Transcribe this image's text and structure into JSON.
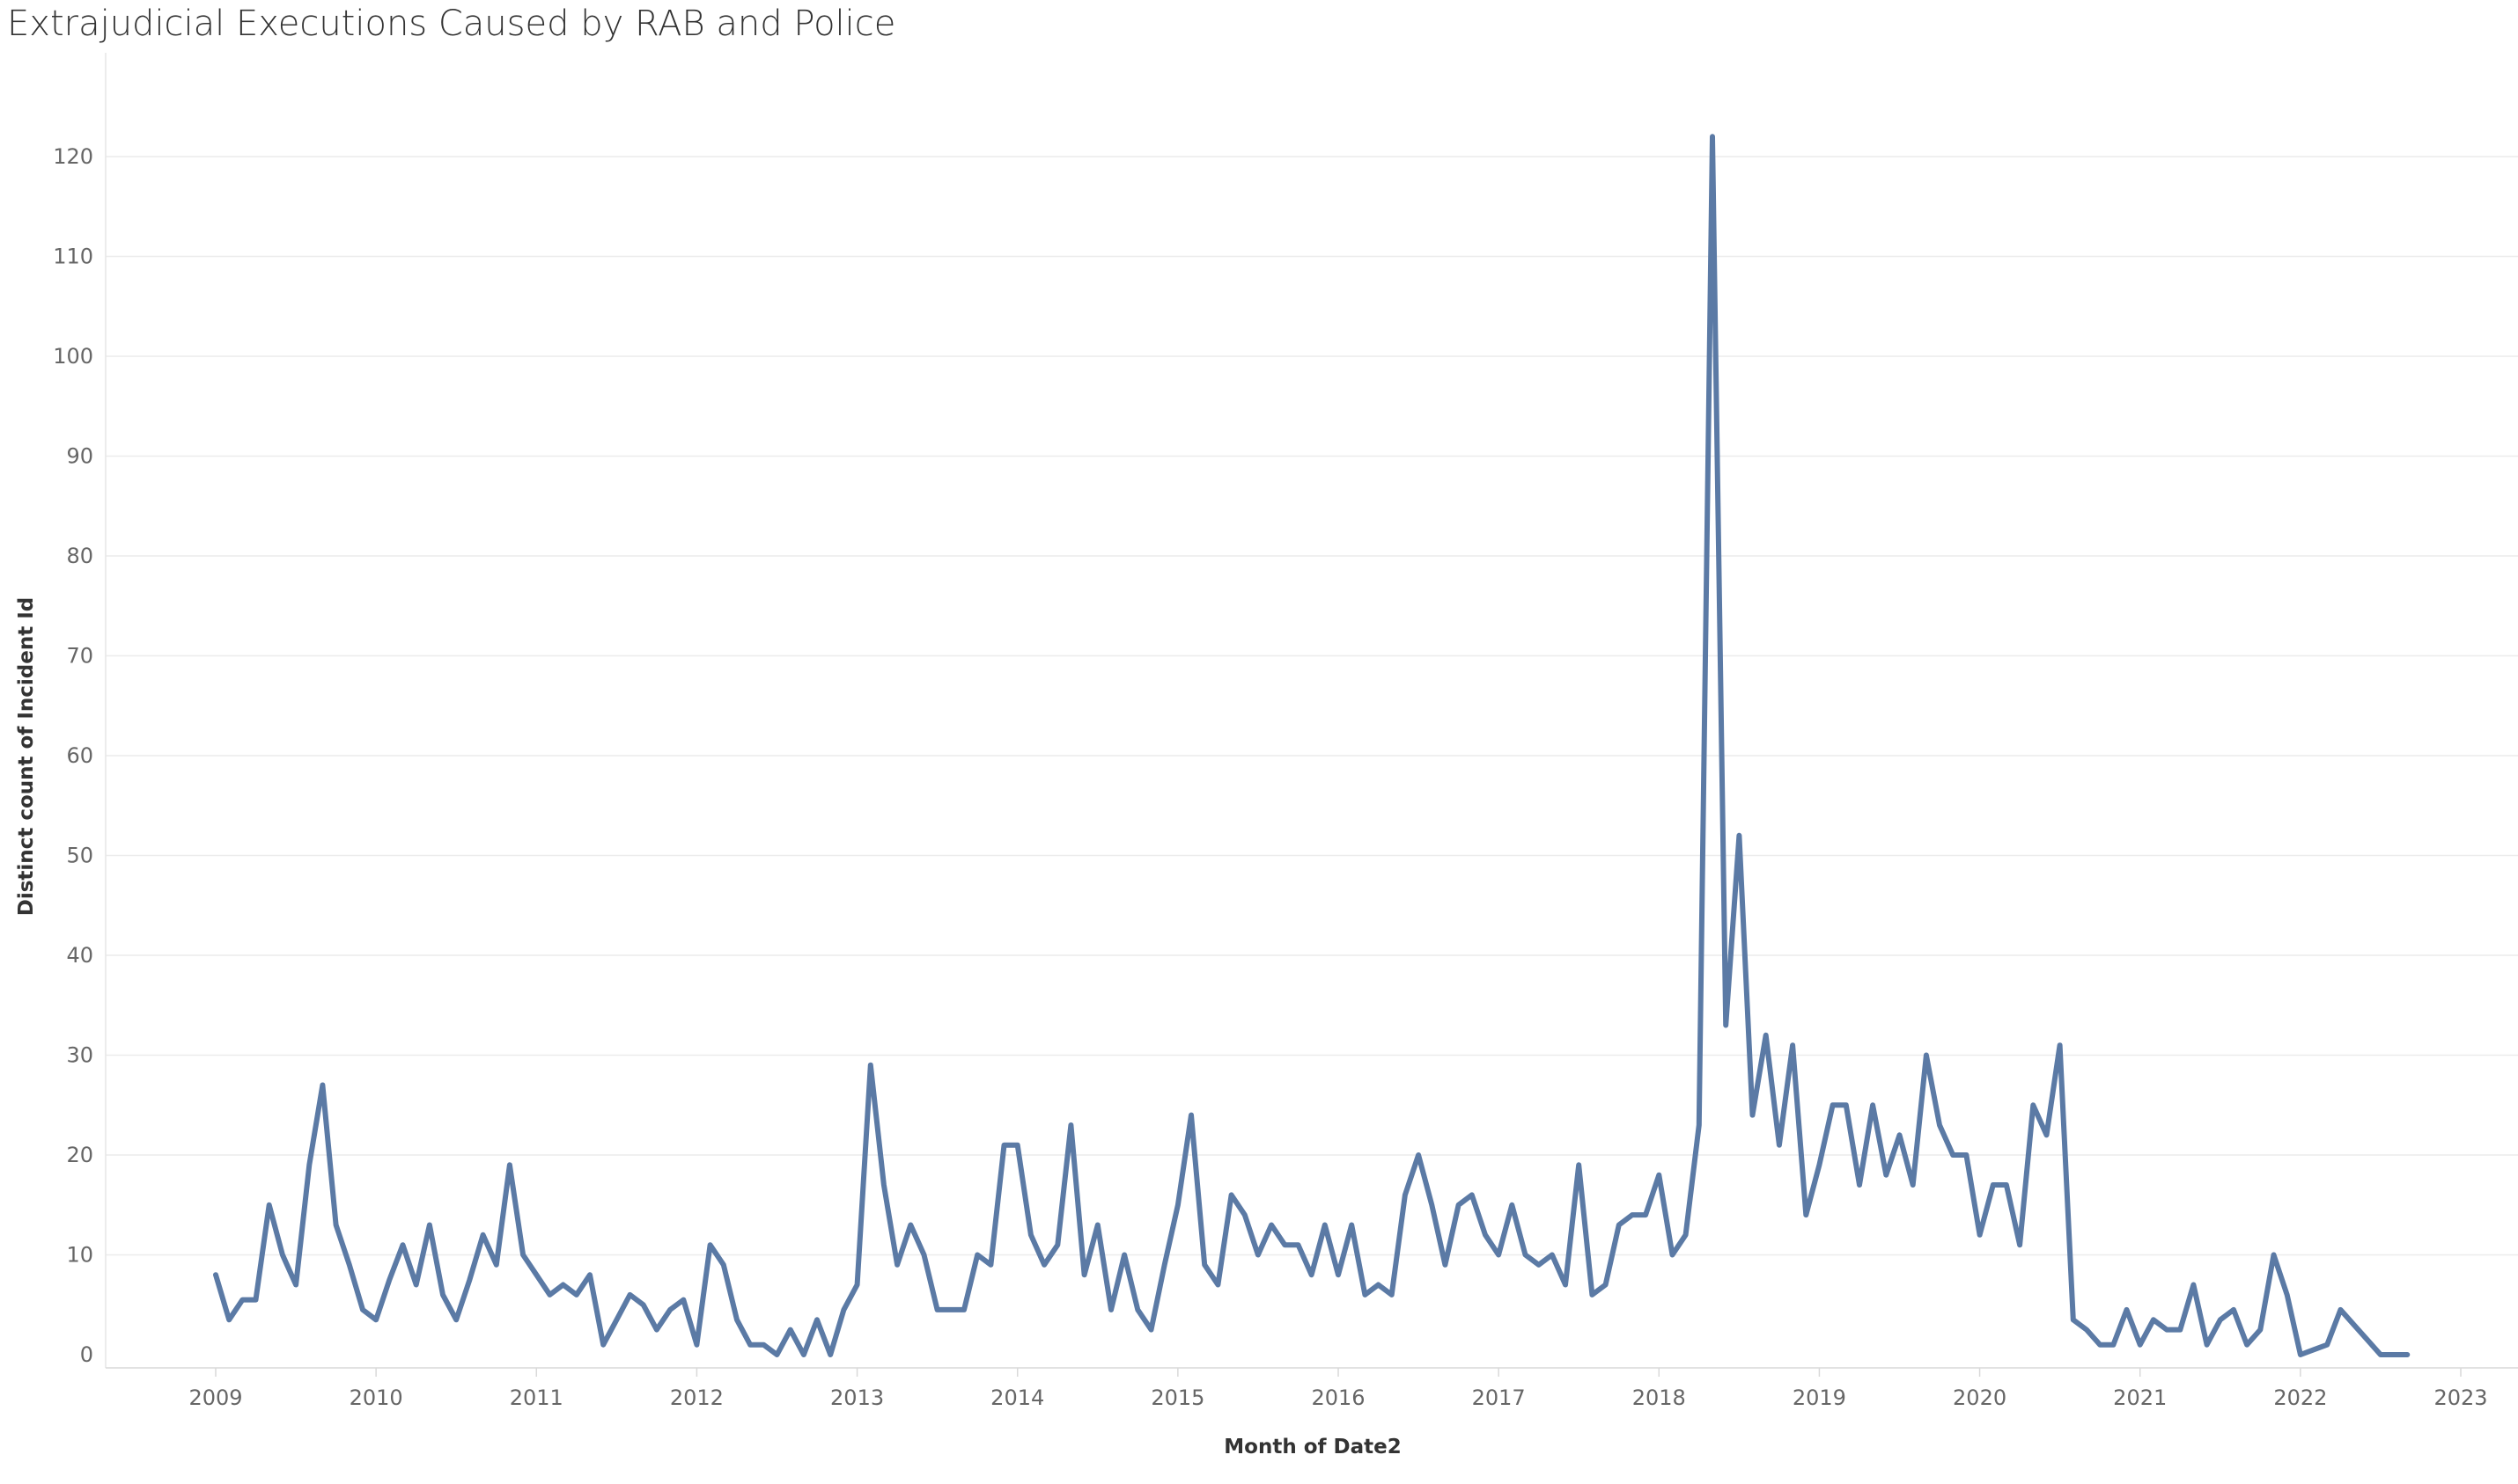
{
  "chart_data": {
    "type": "line",
    "title": "Extrajudicial Executions Caused by RAB and Police",
    "xlabel": "Month of Date2",
    "ylabel": "Distinct count of Incident Id",
    "ylim": [
      -2,
      125
    ],
    "y_ticks": [
      0,
      10,
      20,
      30,
      40,
      50,
      60,
      70,
      80,
      90,
      100,
      110,
      120
    ],
    "x_ticks": [
      "2009",
      "2010",
      "2011",
      "2012",
      "2013",
      "2014",
      "2015",
      "2016",
      "2017",
      "2018",
      "2019",
      "2020",
      "2021",
      "2022",
      "2023"
    ],
    "xlim": [
      "2008-07",
      "2023-03"
    ],
    "grid": true,
    "line_color": "#5b7aa5",
    "series": [
      {
        "x": [
          "2009-01",
          "2009-02",
          "2009-03",
          "2009-04",
          "2009-05",
          "2009-06",
          "2009-07",
          "2009-08",
          "2009-09",
          "2009-10",
          "2009-11",
          "2009-12",
          "2010-01",
          "2010-02",
          "2010-03",
          "2010-04",
          "2010-05",
          "2010-06",
          "2010-07",
          "2010-08",
          "2010-09",
          "2010-10",
          "2010-11",
          "2010-12",
          "2011-01",
          "2011-02",
          "2011-03",
          "2011-04",
          "2011-05",
          "2011-06",
          "2011-07",
          "2011-08",
          "2011-09",
          "2011-10",
          "2011-11",
          "2011-12",
          "2012-01",
          "2012-02",
          "2012-03",
          "2012-04",
          "2012-05",
          "2012-06",
          "2012-07",
          "2012-08",
          "2012-09",
          "2012-10",
          "2012-11",
          "2012-12",
          "2013-01",
          "2013-02",
          "2013-03",
          "2013-04",
          "2013-05",
          "2013-06",
          "2013-07",
          "2013-08",
          "2013-09",
          "2013-10",
          "2013-11",
          "2013-12",
          "2014-01",
          "2014-02",
          "2014-03",
          "2014-04",
          "2014-05",
          "2014-06",
          "2014-07",
          "2014-08",
          "2014-09",
          "2014-10",
          "2014-11",
          "2014-12",
          "2015-01",
          "2015-02",
          "2015-03",
          "2015-04",
          "2015-05",
          "2015-06",
          "2015-07",
          "2015-08",
          "2015-09",
          "2015-10",
          "2015-11",
          "2015-12",
          "2016-01",
          "2016-02",
          "2016-03",
          "2016-04",
          "2016-05",
          "2016-06",
          "2016-07",
          "2016-08",
          "2016-09",
          "2016-10",
          "2016-11",
          "2016-12",
          "2017-01",
          "2017-02",
          "2017-03",
          "2017-04",
          "2017-05",
          "2017-06",
          "2017-07",
          "2017-08",
          "2017-09",
          "2017-10",
          "2017-11",
          "2017-12",
          "2018-01",
          "2018-02",
          "2018-03",
          "2018-04",
          "2018-05",
          "2018-06",
          "2018-07",
          "2018-08",
          "2018-09",
          "2018-10",
          "2018-11",
          "2018-12",
          "2019-01",
          "2019-02",
          "2019-03",
          "2019-04",
          "2019-05",
          "2019-06",
          "2019-07",
          "2019-08",
          "2019-09",
          "2019-10",
          "2019-11",
          "2019-12",
          "2020-01",
          "2020-02",
          "2020-03",
          "2020-04",
          "2020-05",
          "2020-06",
          "2020-07",
          "2020-08",
          "2020-09",
          "2020-10",
          "2020-11",
          "2020-12",
          "2021-01",
          "2021-02",
          "2021-03",
          "2021-04",
          "2021-05",
          "2021-06",
          "2021-07",
          "2021-08",
          "2021-09",
          "2021-10",
          "2021-11",
          "2021-12",
          "2022-01",
          "2022-02",
          "2022-03",
          "2022-04",
          "2022-05",
          "2022-06",
          "2022-07",
          "2022-08",
          "2022-09"
        ],
        "y": [
          8,
          3.5,
          5.5,
          5.5,
          15,
          10,
          7,
          19,
          27,
          13,
          9,
          4.5,
          3.5,
          7.5,
          11,
          7,
          13,
          6,
          3.5,
          7.5,
          12,
          9,
          19,
          10,
          8,
          6,
          7,
          6,
          8,
          1,
          3.5,
          6,
          5,
          2.5,
          4.5,
          5.5,
          1,
          11,
          9,
          3.5,
          1,
          1,
          0,
          2.5,
          0,
          3.5,
          0,
          4.5,
          7,
          29,
          17,
          9,
          13,
          10,
          4.5,
          4.5,
          4.5,
          10,
          9,
          21,
          21,
          12,
          9,
          11,
          23,
          8,
          13,
          4.5,
          10,
          4.5,
          2.5,
          9,
          15,
          24,
          9,
          7,
          16,
          14,
          10,
          13,
          11,
          11,
          8,
          13,
          8,
          13,
          6,
          7,
          6,
          16,
          20,
          15,
          9,
          15,
          16,
          12,
          10,
          15,
          10,
          9,
          10,
          7,
          19,
          6,
          7,
          13,
          14,
          14,
          18,
          10,
          12,
          23,
          122,
          33,
          52,
          24,
          32,
          21,
          31,
          14,
          19,
          25,
          25,
          17,
          25,
          18,
          22,
          17,
          30,
          23,
          20,
          20,
          12,
          17,
          17,
          11,
          25,
          22,
          31,
          3.5,
          2.5,
          1,
          1,
          4.5,
          1,
          3.5,
          2.5,
          2.5,
          7,
          1,
          3.5,
          4.5,
          1,
          2.5,
          10,
          6,
          0,
          0.5,
          1,
          4.5,
          3,
          1.5,
          0,
          0,
          0
        ]
      }
    ]
  }
}
